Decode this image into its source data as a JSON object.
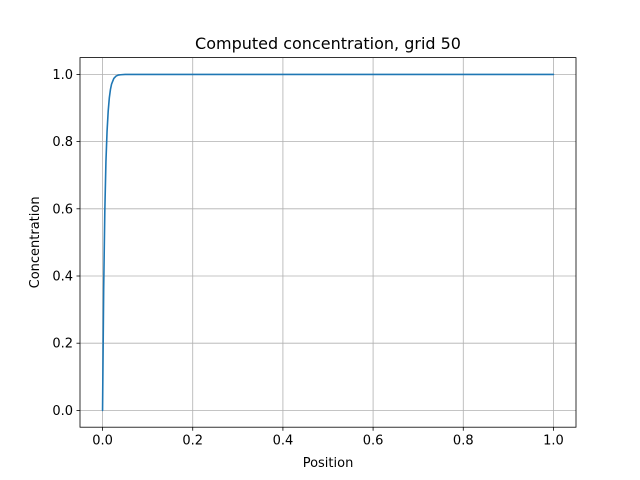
{
  "chart_data": {
    "type": "line",
    "title": "Computed concentration, grid 50",
    "xlabel": "Position",
    "ylabel": "Concentration",
    "xlim": [
      -0.05,
      1.05
    ],
    "ylim": [
      -0.05,
      1.05
    ],
    "xticks": [
      0.0,
      0.2,
      0.4,
      0.6,
      0.8,
      1.0
    ],
    "xtick_labels": [
      "0.0",
      "0.2",
      "0.4",
      "0.6",
      "0.8",
      "1.0"
    ],
    "yticks": [
      0.0,
      0.2,
      0.4,
      0.6,
      0.8,
      1.0
    ],
    "ytick_labels": [
      "0.0",
      "0.2",
      "0.4",
      "0.6",
      "0.8",
      "1.0"
    ],
    "grid": true,
    "series": [
      {
        "color": "#1f77b4",
        "x": [
          0.0,
          0.0025,
          0.005,
          0.0075,
          0.01,
          0.0125,
          0.015,
          0.0175,
          0.02,
          0.025,
          0.03,
          0.035,
          0.04,
          0.05,
          0.1,
          0.2,
          0.4,
          0.6,
          0.8,
          1.0
        ],
        "y": [
          0.0,
          0.36,
          0.59,
          0.74,
          0.83,
          0.89,
          0.93,
          0.955,
          0.971,
          0.988,
          0.995,
          0.998,
          0.999,
          1.0,
          1.0,
          1.0,
          1.0,
          1.0,
          1.0,
          1.0
        ]
      }
    ]
  }
}
